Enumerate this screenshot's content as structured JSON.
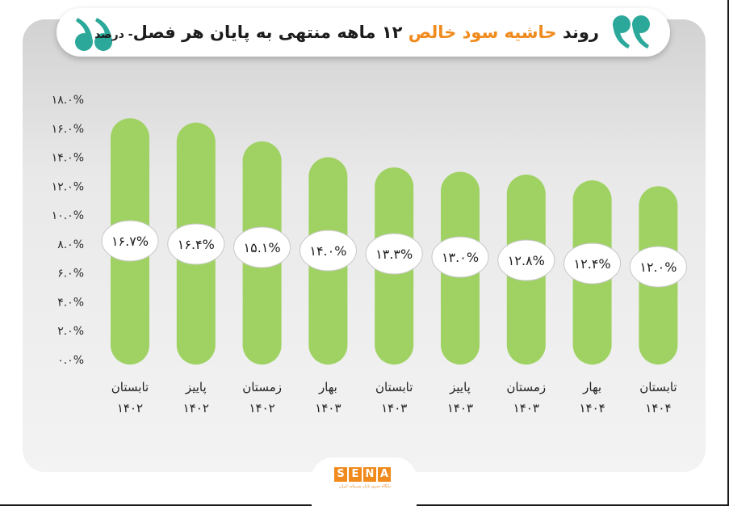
{
  "header": {
    "title_part1": "روند",
    "title_highlight": "حاشیه سود خالص",
    "title_part2": "۱۲ ماهه منتهی به پایان هر فصل",
    "title_unit": "- درصد"
  },
  "colors": {
    "bar": "#9fd262",
    "quote": "#2ba89a",
    "accent": "#f08a1d"
  },
  "icons": [
    "quote-open-icon",
    "quote-close-icon"
  ],
  "logo": {
    "letters": [
      "S",
      "E",
      "N",
      "A"
    ],
    "subtitle": "پایگاه خبری بازار سرمایه ایران"
  },
  "chart_data": {
    "type": "bar",
    "categories": [
      [
        "تابستان",
        "۱۴۰۲"
      ],
      [
        "پاییز",
        "۱۴۰۲"
      ],
      [
        "زمستان",
        "۱۴۰۲"
      ],
      [
        "بهار",
        "۱۴۰۳"
      ],
      [
        "تابستان",
        "۱۴۰۳"
      ],
      [
        "پاییز",
        "۱۴۰۳"
      ],
      [
        "زمستان",
        "۱۴۰۳"
      ],
      [
        "بهار",
        "۱۴۰۴"
      ],
      [
        "تابستان",
        "۱۴۰۴"
      ]
    ],
    "values": [
      16.7,
      16.4,
      15.1,
      14.0,
      13.3,
      13.0,
      12.8,
      12.4,
      12.0
    ],
    "value_labels": [
      "۱۶.۷%",
      "۱۶.۴%",
      "۱۵.۱%",
      "۱۴.۰%",
      "۱۳.۳%",
      "۱۳.۰%",
      "۱۲.۸%",
      "۱۲.۴%",
      "۱۲.۰%"
    ],
    "y_ticks": [
      "۰.۰%",
      "۲.۰%",
      "۴.۰%",
      "۶.۰%",
      "۸.۰%",
      "۱۰.۰%",
      "۱۲.۰%",
      "۱۴.۰%",
      "۱۶.۰%",
      "۱۸.۰%"
    ],
    "ylim": [
      0,
      18
    ],
    "grid": false,
    "title": "روند حاشیه سود خالص ۱۲ ماهه منتهی به پایان هر فصل - درصد"
  }
}
